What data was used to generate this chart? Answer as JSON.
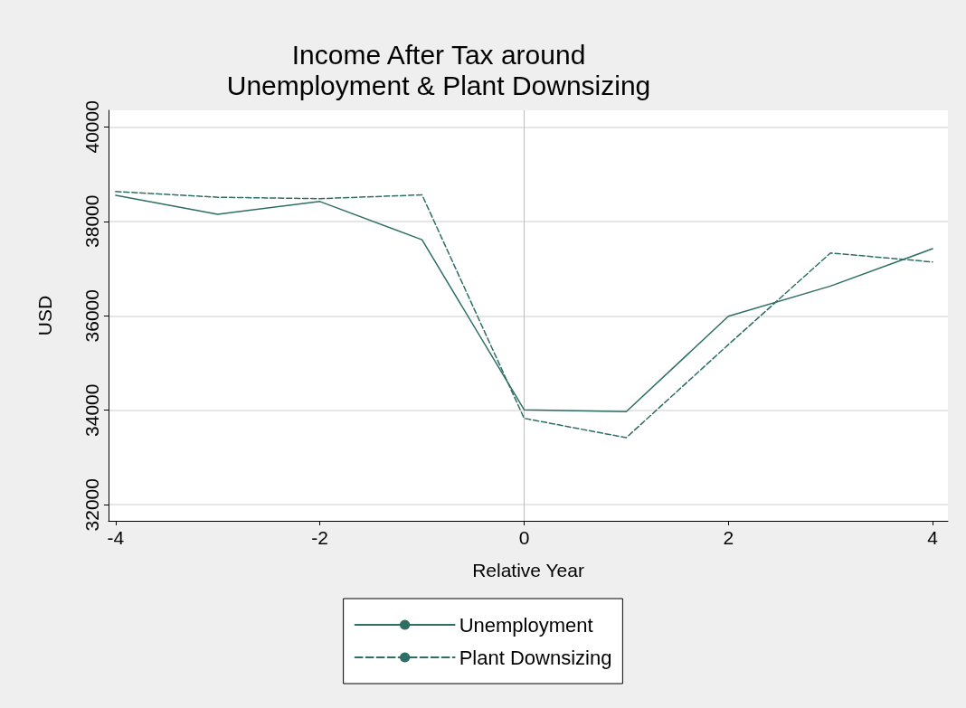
{
  "chart_data": {
    "type": "line",
    "title": "Income After Tax around\nUnemployment & Plant Downsizing",
    "xlabel": "Relative Year",
    "ylabel": "USD",
    "x": [
      -4,
      -3,
      -2,
      -1,
      0,
      1,
      2,
      3,
      4
    ],
    "series": [
      {
        "name": "Unemployment",
        "color": "#2e6e64",
        "line_style": "solid",
        "values": [
          38550,
          38150,
          38420,
          37610,
          34010,
          33970,
          35990,
          36630,
          37420
        ]
      },
      {
        "name": "Plant Downsizing",
        "color": "#2e6e64",
        "line_style": "dashed",
        "values": [
          38630,
          38510,
          38480,
          38560,
          33830,
          33420,
          35390,
          37330,
          37140
        ]
      }
    ],
    "xlim": [
      -4.07,
      4.15
    ],
    "xticks": [
      -4,
      -2,
      0,
      2,
      4
    ],
    "ylim": [
      31660,
      40350
    ],
    "yticks": [
      32000,
      34000,
      36000,
      38000,
      40000
    ],
    "grid": "y",
    "legend": "bottom",
    "marker": "none",
    "ref_lines": [
      {
        "axis": "x",
        "value": 0,
        "label": null,
        "color": "#bdbdbd"
      }
    ]
  }
}
